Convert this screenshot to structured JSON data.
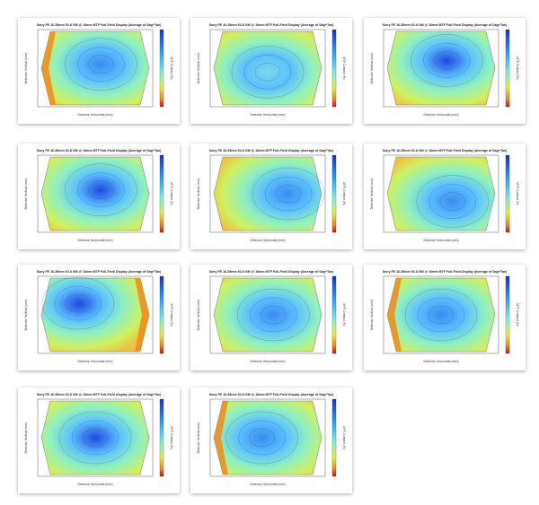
{
  "gallery": {
    "layout": "3-column grid of MTF plot thumbnails",
    "plots": [
      {
        "title": "Sony FE 16-35mm f/2.8 GM @ 16mm MTF Full-Field Display (Average of Sag+Tan)",
        "xlabel": "Detector Horizontal (mm)",
        "ylabel": "Detector Vertical (mm)",
        "colorbar_label": "MTF Contrast (%)",
        "center_value": 0.78,
        "pattern": "center-high, edges low"
      },
      {
        "title": "Sony FE 16-35mm f/2.8 GM @ 16mm MTF Full-Field Display (Average of Sag+Tan)",
        "xlabel": "Detector Horizontal (mm)",
        "ylabel": "Detector Vertical (mm)",
        "colorbar_label": "MTF Contrast (%)",
        "center_value": 0.55,
        "pattern": "flat, mostly green"
      },
      {
        "title": "Sony FE 16-35mm f/2.8 GM @ 16mm MTF Full-Field Display (Average of Sag+Tan)",
        "xlabel": "Detector Horizontal (mm)",
        "ylabel": "Detector Vertical (mm)",
        "colorbar_label": "MTF Contrast (%)",
        "center_value": 0.85,
        "pattern": "strong center"
      },
      {
        "title": "Sony FE 16-35mm f/2.8 GM @ 16mm MTF Full-Field Display (Average of Sag+Tan)",
        "xlabel": "Detector Horizontal (mm)",
        "ylabel": "Detector Vertical (mm)",
        "colorbar_label": "MTF Contrast (%)",
        "center_value": 0.8,
        "pattern": "center-high"
      },
      {
        "title": "Sony FE 16-35mm f/2.8 GM @ 16mm MTF Full-Field Display (Average of Sag+Tan)",
        "xlabel": "Detector Horizontal (mm)",
        "ylabel": "Detector Vertical (mm)",
        "colorbar_label": "MTF Contrast (%)",
        "center_value": 0.75,
        "pattern": "off-center right"
      },
      {
        "title": "Sony FE 16-35mm f/2.8 GM @ 16mm MTF Full-Field Display (Average of Sag+Tan)",
        "xlabel": "Detector Horizontal (mm)",
        "ylabel": "Detector Vertical (mm)",
        "colorbar_label": "MTF Contrast (%)",
        "center_value": 0.72,
        "pattern": "lower right peak"
      },
      {
        "title": "Sony FE 16-35mm f/2.8 GM @ 16mm MTF Full-Field Display (Average of Sag+Tan)",
        "xlabel": "Detector Horizontal (mm)",
        "ylabel": "Detector Vertical (mm)",
        "colorbar_label": "MTF Contrast (%)",
        "center_value": 0.8,
        "pattern": "upper-left peak"
      },
      {
        "title": "Sony FE 16-35mm f/2.8 GM @ 16mm MTF Full-Field Display (Average of Sag+Tan)",
        "xlabel": "Detector Horizontal (mm)",
        "ylabel": "Detector Vertical (mm)",
        "colorbar_label": "MTF Contrast (%)",
        "center_value": 0.78,
        "pattern": "center-high"
      },
      {
        "title": "Sony FE 16-35mm f/2.8 GM @ 16mm MTF Full-Field Display (Average of Sag+Tan)",
        "xlabel": "Detector Horizontal (mm)",
        "ylabel": "Detector Vertical (mm)",
        "colorbar_label": "MTF Contrast (%)",
        "center_value": 0.7,
        "pattern": "orange left edge"
      },
      {
        "title": "Sony FE 16-35mm f/2.8 GM @ 16mm MTF Full-Field Display (Average of Sag+Tan)",
        "xlabel": "Detector Horizontal (mm)",
        "ylabel": "Detector Vertical (mm)",
        "colorbar_label": "MTF Contrast (%)",
        "center_value": 0.8,
        "pattern": "center-high"
      },
      {
        "title": "Sony FE 16-35mm f/2.8 GM @ 16mm MTF Full-Field Display (Average of Sag+Tan)",
        "xlabel": "Detector Horizontal (mm)",
        "ylabel": "Detector Vertical (mm)",
        "colorbar_label": "MTF Contrast (%)",
        "center_value": 0.72,
        "pattern": "center-high, orange left edge"
      }
    ]
  },
  "chart_data": [
    {
      "type": "heatmap",
      "title": "Sony FE 16-35mm f/2.8 GM @ 16mm MTF Full-Field Display (Average of Sag+Tan)",
      "xlabel": "Detector Horizontal (mm)",
      "ylabel": "Detector Vertical (mm)",
      "colorbar_label": "MTF Contrast (%)",
      "peak": 0.78
    },
    {
      "type": "heatmap",
      "title": "Sony FE 16-35mm f/2.8 GM @ 16mm MTF Full-Field Display (Average of Sag+Tan)",
      "xlabel": "Detector Horizontal (mm)",
      "ylabel": "Detector Vertical (mm)",
      "colorbar_label": "MTF Contrast (%)",
      "peak": 0.55
    },
    {
      "type": "heatmap",
      "title": "Sony FE 16-35mm f/2.8 GM @ 16mm MTF Full-Field Display (Average of Sag+Tan)",
      "xlabel": "Detector Horizontal (mm)",
      "ylabel": "Detector Vertical (mm)",
      "colorbar_label": "MTF Contrast (%)",
      "peak": 0.85
    },
    {
      "type": "heatmap",
      "title": "Sony FE 16-35mm f/2.8 GM @ 16mm MTF Full-Field Display (Average of Sag+Tan)",
      "xlabel": "Detector Horizontal (mm)",
      "ylabel": "Detector Vertical (mm)",
      "colorbar_label": "MTF Contrast (%)",
      "peak": 0.8
    },
    {
      "type": "heatmap",
      "title": "Sony FE 16-35mm f/2.8 GM @ 16mm MTF Full-Field Display (Average of Sag+Tan)",
      "xlabel": "Detector Horizontal (mm)",
      "ylabel": "Detector Vertical (mm)",
      "colorbar_label": "MTF Contrast (%)",
      "peak": 0.75
    },
    {
      "type": "heatmap",
      "title": "Sony FE 16-35mm f/2.8 GM @ 16mm MTF Full-Field Display (Average of Sag+Tan)",
      "xlabel": "Detector Horizontal (mm)",
      "ylabel": "Detector Vertical (mm)",
      "colorbar_label": "MTF Contrast (%)",
      "peak": 0.72
    },
    {
      "type": "heatmap",
      "title": "Sony FE 16-35mm f/2.8 GM @ 16mm MTF Full-Field Display (Average of Sag+Tan)",
      "xlabel": "Detector Horizontal (mm)",
      "ylabel": "Detector Vertical (mm)",
      "colorbar_label": "MTF Contrast (%)",
      "peak": 0.8
    },
    {
      "type": "heatmap",
      "title": "Sony FE 16-35mm f/2.8 GM @ 16mm MTF Full-Field Display (Average of Sag+Tan)",
      "xlabel": "Detector Horizontal (mm)",
      "ylabel": "Detector Vertical (mm)",
      "colorbar_label": "MTF Contrast (%)",
      "peak": 0.78
    },
    {
      "type": "heatmap",
      "title": "Sony FE 16-35mm f/2.8 GM @ 16mm MTF Full-Field Display (Average of Sag+Tan)",
      "xlabel": "Detector Horizontal (mm)",
      "ylabel": "Detector Vertical (mm)",
      "colorbar_label": "MTF Contrast (%)",
      "peak": 0.7
    },
    {
      "type": "heatmap",
      "title": "Sony FE 16-35mm f/2.8 GM @ 16mm MTF Full-Field Display (Average of Sag+Tan)",
      "xlabel": "Detector Horizontal (mm)",
      "ylabel": "Detector Vertical (mm)",
      "colorbar_label": "MTF Contrast (%)",
      "peak": 0.8
    },
    {
      "type": "heatmap",
      "title": "Sony FE 16-35mm f/2.8 GM @ 16mm MTF Full-Field Display (Average of Sag+Tan)",
      "xlabel": "Detector Horizontal (mm)",
      "ylabel": "Detector Vertical (mm)",
      "colorbar_label": "MTF Contrast (%)",
      "peak": 0.72
    }
  ],
  "colors": {
    "high": "#1f4fe0",
    "mid": "#7ee0ff",
    "low": "#d8f25a",
    "edge": "#f08a1a"
  }
}
